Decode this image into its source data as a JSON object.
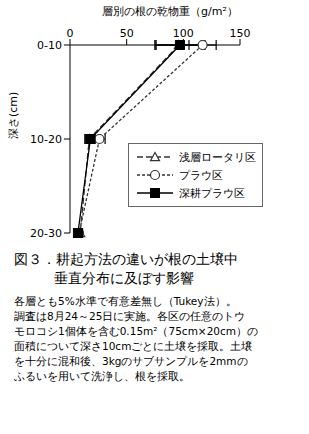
{
  "chart_data": {
    "type": "line",
    "orientation": "horizontal",
    "title": "層別の根の乾物重（g/m²）",
    "y_label": "深さ(cm)",
    "categories": [
      "0-10",
      "10-20",
      "20-30"
    ],
    "xlim": [
      0,
      150
    ],
    "xticks": [
      0,
      50,
      100,
      150
    ],
    "grid": false,
    "legend": "lower right",
    "series": [
      {
        "name": "浅層ロータリ区",
        "color": "#333333",
        "marker": "triangle",
        "line_style": "dashed",
        "values": [
          96,
          17,
          9
        ],
        "errors": [
          20,
          4,
          2
        ]
      },
      {
        "name": "プラウ区",
        "color": "#333333",
        "marker": "circle",
        "line_style": "dotted",
        "values": [
          117,
          26,
          8
        ],
        "errors": [
          12,
          5,
          2
        ]
      },
      {
        "name": "深耕プラウ区",
        "color": "#000000",
        "marker": "square",
        "line_style": "solid",
        "values": [
          97,
          18,
          7
        ],
        "errors": [
          22,
          4,
          2
        ]
      }
    ],
    "caption": [
      "図３．耕起方法の違いが根の土壌中",
      "垂直分布に及ぼす影響"
    ],
    "notes": [
      "各層とも5%水準で有意差無し（Tukey法）。",
      "調査は8月24～25日に実施。各区の任意のトウ",
      "モロコシ1個体を含む0.15m²（75cm×20cm）の",
      "面積について深さ10cmごとに土壌を採取。土壌",
      "を十分に混和後、3kgのサブサンプルを2mmの",
      "ふるいを用いて洗浄し、根を採取。"
    ]
  }
}
